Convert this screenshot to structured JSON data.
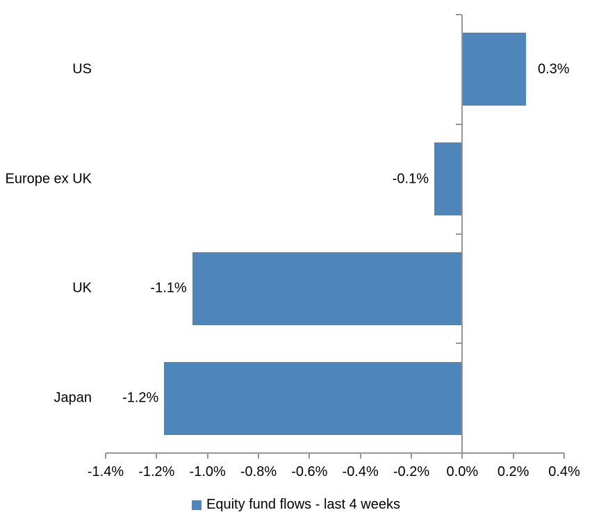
{
  "chart_data": {
    "type": "bar",
    "orientation": "horizontal",
    "title": "",
    "xlabel": "",
    "ylabel": "",
    "grid": false,
    "legend_position": "bottom-center",
    "categories": [
      "US",
      "Europe ex UK",
      "UK",
      "Japan"
    ],
    "series": [
      {
        "name": "Equity fund flows - last 4 weeks",
        "values": [
          0.3,
          -0.1,
          -1.1,
          -1.2
        ],
        "bar_extents_pct": [
          0.25,
          -0.11,
          -1.06,
          -1.17
        ],
        "data_labels": [
          "0.3%",
          "-0.1%",
          "-1.1%",
          "-1.2%"
        ]
      }
    ],
    "x_axis": {
      "xlim": [
        -1.4,
        0.4
      ],
      "tick_values": [
        -1.4,
        -1.2,
        -1.0,
        -0.8,
        -0.6,
        -0.4,
        -0.2,
        0.0,
        0.2,
        0.4
      ],
      "tick_labels": [
        "-1.4%",
        "-1.2%",
        "-1.0%",
        "-0.8%",
        "-0.6%",
        "-0.4%",
        "-0.2%",
        "0.0%",
        "0.2%",
        "0.4%"
      ]
    },
    "colors": {
      "bar": "#4E86BC",
      "axis": "#969696",
      "text": "#000000",
      "background": "#FFFFFF"
    }
  },
  "legend": {
    "label": "Equity fund flows - last 4 weeks"
  }
}
